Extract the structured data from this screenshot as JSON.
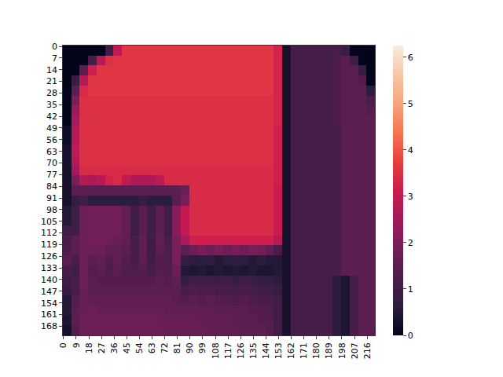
{
  "chart_data": {
    "type": "heatmap",
    "x": [
      2.5,
      8.5,
      14.5,
      20.5,
      26.5,
      32.5,
      38.5,
      44.5,
      50.5,
      56.5,
      62.5,
      68.5,
      74.5,
      80.5,
      86.5,
      92.5,
      98.5,
      104.5,
      110.5,
      116.5,
      122.5,
      128.5,
      134.5,
      140.5,
      146.5,
      152.5,
      158.5,
      164.5,
      170.5,
      176.5,
      182.5,
      188.5,
      194.5,
      200.5,
      206.5,
      212.5,
      218.5
    ],
    "y": [
      2.5,
      8.5,
      14.5,
      20.5,
      26.5,
      32.5,
      38.5,
      44.5,
      50.5,
      56.5,
      62.5,
      68.5,
      74.5,
      80.5,
      86.5,
      92.5,
      98.5,
      104.5,
      110.5,
      116.5,
      122.5,
      128.5,
      134.5,
      140.5,
      146.5,
      152.5,
      158.5,
      164.5,
      170.5
    ],
    "cells": [
      [
        0,
        0,
        0,
        0,
        0,
        1.0,
        3.0,
        3.6,
        3.6,
        3.6,
        3.6,
        3.6,
        3.6,
        3.6,
        3.6,
        3.6,
        3.6,
        3.6,
        3.6,
        3.6,
        3.6,
        3.6,
        3.6,
        3.6,
        3.6,
        3.3,
        0.3,
        1.1,
        1.1,
        1.1,
        1.1,
        1.1,
        1.2,
        0.9,
        0,
        0,
        0
      ],
      [
        0,
        0,
        0,
        1.2,
        2.8,
        3.5,
        3.6,
        3.6,
        3.6,
        3.6,
        3.6,
        3.6,
        3.6,
        3.6,
        3.6,
        3.6,
        3.6,
        3.6,
        3.6,
        3.6,
        3.6,
        3.6,
        3.6,
        3.6,
        3.6,
        3.3,
        0.3,
        1.1,
        1.1,
        1.1,
        1.1,
        1.1,
        1.3,
        1.5,
        1.0,
        0,
        0
      ],
      [
        0,
        0,
        1.5,
        3.2,
        3.6,
        3.6,
        3.6,
        3.6,
        3.6,
        3.6,
        3.6,
        3.6,
        3.6,
        3.6,
        3.6,
        3.6,
        3.6,
        3.6,
        3.6,
        3.6,
        3.6,
        3.6,
        3.6,
        3.6,
        3.6,
        3.3,
        0.3,
        1.1,
        1.1,
        1.1,
        1.1,
        1.1,
        1.3,
        1.5,
        1.5,
        0.8,
        0
      ],
      [
        0,
        0.8,
        2.8,
        3.6,
        3.6,
        3.6,
        3.6,
        3.6,
        3.6,
        3.6,
        3.6,
        3.6,
        3.6,
        3.6,
        3.6,
        3.6,
        3.6,
        3.6,
        3.6,
        3.6,
        3.6,
        3.6,
        3.6,
        3.6,
        3.6,
        3.3,
        0.3,
        1.1,
        1.1,
        1.1,
        1.1,
        1.1,
        1.3,
        1.5,
        1.5,
        1.4,
        0
      ],
      [
        0,
        1.5,
        3.4,
        3.6,
        3.6,
        3.6,
        3.6,
        3.6,
        3.6,
        3.6,
        3.6,
        3.6,
        3.6,
        3.6,
        3.6,
        3.6,
        3.6,
        3.6,
        3.6,
        3.6,
        3.6,
        3.6,
        3.6,
        3.6,
        3.6,
        3.3,
        0.3,
        1.1,
        1.1,
        1.1,
        1.1,
        1.1,
        1.3,
        1.5,
        1.5,
        1.5,
        0.6
      ],
      [
        0,
        2.0,
        3.5,
        3.5,
        3.5,
        3.5,
        3.5,
        3.5,
        3.5,
        3.5,
        3.5,
        3.5,
        3.5,
        3.5,
        3.5,
        3.5,
        3.5,
        3.5,
        3.5,
        3.5,
        3.5,
        3.5,
        3.5,
        3.5,
        3.5,
        3.3,
        0.3,
        1.1,
        1.1,
        1.1,
        1.1,
        1.1,
        1.3,
        1.5,
        1.5,
        1.5,
        1.2
      ],
      [
        0,
        2.4,
        3.5,
        3.5,
        3.5,
        3.5,
        3.5,
        3.5,
        3.5,
        3.5,
        3.5,
        3.5,
        3.5,
        3.5,
        3.5,
        3.5,
        3.5,
        3.5,
        3.5,
        3.5,
        3.5,
        3.5,
        3.5,
        3.5,
        3.5,
        3.3,
        0.3,
        1.1,
        1.1,
        1.1,
        1.1,
        1.1,
        1.3,
        1.5,
        1.5,
        1.5,
        1.4
      ],
      [
        0,
        2.6,
        3.5,
        3.5,
        3.5,
        3.5,
        3.5,
        3.5,
        3.5,
        3.5,
        3.5,
        3.5,
        3.5,
        3.5,
        3.5,
        3.5,
        3.5,
        3.5,
        3.5,
        3.5,
        3.5,
        3.5,
        3.5,
        3.5,
        3.5,
        3.3,
        0.3,
        1.1,
        1.1,
        1.1,
        1.1,
        1.1,
        1.3,
        1.5,
        1.5,
        1.5,
        1.5
      ],
      [
        0.2,
        2.8,
        3.5,
        3.5,
        3.5,
        3.5,
        3.5,
        3.5,
        3.5,
        3.5,
        3.5,
        3.5,
        3.5,
        3.5,
        3.5,
        3.5,
        3.5,
        3.5,
        3.5,
        3.5,
        3.5,
        3.5,
        3.5,
        3.5,
        3.5,
        3.2,
        0.3,
        1.1,
        1.1,
        1.1,
        1.1,
        1.1,
        1.2,
        1.5,
        1.5,
        1.5,
        1.5
      ],
      [
        0.2,
        2.8,
        3.5,
        3.5,
        3.5,
        3.5,
        3.5,
        3.5,
        3.5,
        3.5,
        3.5,
        3.5,
        3.5,
        3.5,
        3.5,
        3.5,
        3.5,
        3.5,
        3.5,
        3.5,
        3.5,
        3.5,
        3.5,
        3.5,
        3.5,
        3.2,
        0.3,
        1.1,
        1.1,
        1.1,
        1.1,
        1.1,
        1.2,
        1.5,
        1.5,
        1.5,
        1.5
      ],
      [
        0.3,
        3.0,
        3.5,
        3.5,
        3.5,
        3.5,
        3.5,
        3.5,
        3.5,
        3.5,
        3.5,
        3.5,
        3.5,
        3.5,
        3.5,
        3.5,
        3.5,
        3.5,
        3.5,
        3.5,
        3.5,
        3.5,
        3.5,
        3.5,
        3.5,
        3.2,
        0.3,
        1.1,
        1.1,
        1.1,
        1.1,
        1.1,
        1.2,
        1.5,
        1.5,
        1.5,
        1.5
      ],
      [
        0.3,
        2.8,
        3.5,
        3.5,
        3.5,
        3.5,
        3.5,
        3.5,
        3.5,
        3.5,
        3.5,
        3.5,
        3.5,
        3.5,
        3.5,
        3.5,
        3.5,
        3.5,
        3.5,
        3.5,
        3.5,
        3.5,
        3.5,
        3.5,
        3.5,
        3.2,
        0.3,
        1.1,
        1.1,
        1.1,
        1.1,
        1.1,
        1.2,
        1.5,
        1.5,
        1.5,
        1.5
      ],
      [
        0.3,
        2.5,
        3.4,
        3.4,
        3.4,
        3.4,
        3.4,
        3.4,
        3.4,
        3.4,
        3.4,
        3.4,
        3.4,
        3.4,
        3.4,
        3.4,
        3.4,
        3.4,
        3.4,
        3.4,
        3.4,
        3.4,
        3.4,
        3.4,
        3.4,
        3.2,
        0.3,
        1.1,
        1.1,
        1.1,
        1.1,
        1.1,
        1.2,
        1.5,
        1.5,
        1.5,
        1.5
      ],
      [
        0.3,
        2.0,
        2.8,
        2.7,
        2.8,
        3.3,
        3.4,
        3.0,
        2.7,
        2.7,
        2.7,
        2.9,
        3.4,
        3.4,
        3.4,
        3.4,
        3.4,
        3.4,
        3.4,
        3.4,
        3.4,
        3.4,
        3.4,
        3.4,
        3.4,
        3.2,
        0.3,
        1.1,
        1.1,
        1.1,
        1.1,
        1.1,
        1.2,
        1.5,
        1.5,
        1.5,
        1.5
      ],
      [
        0.3,
        1.5,
        1.5,
        1.5,
        1.5,
        1.5,
        1.5,
        1.5,
        1.5,
        1.5,
        1.5,
        1.5,
        1.5,
        1.5,
        1.8,
        3.4,
        3.4,
        3.4,
        3.4,
        3.4,
        3.4,
        3.4,
        3.4,
        3.4,
        3.4,
        3.1,
        0.3,
        1.1,
        1.1,
        1.1,
        1.1,
        1.1,
        1.2,
        1.5,
        1.5,
        1.5,
        1.5
      ],
      [
        0.3,
        0.8,
        1.0,
        0.6,
        0.6,
        0.6,
        0.6,
        0.6,
        0.6,
        0.8,
        0.6,
        0.6,
        0.6,
        1.5,
        2.0,
        3.4,
        3.4,
        3.4,
        3.4,
        3.4,
        3.4,
        3.4,
        3.4,
        3.4,
        3.4,
        3.1,
        0.3,
        1.1,
        1.1,
        1.1,
        1.1,
        1.1,
        1.2,
        1.5,
        1.5,
        1.5,
        1.5
      ],
      [
        0.5,
        1.0,
        1.8,
        1.9,
        1.9,
        1.9,
        1.9,
        1.6,
        1.0,
        1.5,
        1.0,
        1.5,
        1.0,
        2.2,
        3.0,
        3.4,
        3.4,
        3.4,
        3.4,
        3.4,
        3.4,
        3.4,
        3.4,
        3.4,
        3.4,
        3.1,
        0.3,
        1.1,
        1.1,
        1.1,
        1.1,
        1.1,
        1.2,
        1.5,
        1.5,
        1.5,
        1.5
      ],
      [
        0.5,
        1.0,
        1.8,
        1.9,
        1.9,
        1.9,
        1.9,
        1.6,
        1.0,
        1.5,
        1.0,
        1.5,
        1.0,
        2.2,
        3.0,
        3.4,
        3.4,
        3.4,
        3.4,
        3.4,
        3.4,
        3.4,
        3.4,
        3.4,
        3.4,
        3.1,
        0.3,
        1.1,
        1.1,
        1.1,
        1.1,
        1.1,
        1.2,
        1.5,
        1.5,
        1.5,
        1.5
      ],
      [
        1.0,
        1.0,
        1.8,
        1.9,
        1.9,
        1.9,
        1.9,
        1.6,
        1.0,
        1.5,
        1.0,
        1.5,
        1.0,
        2.2,
        3.0,
        3.4,
        3.4,
        3.4,
        3.4,
        3.4,
        3.4,
        3.4,
        3.4,
        3.4,
        3.4,
        3.1,
        0.3,
        1.1,
        1.1,
        1.1,
        1.1,
        1.1,
        1.2,
        1.5,
        1.5,
        1.5,
        1.5
      ],
      [
        1.2,
        1.5,
        1.8,
        1.9,
        1.9,
        1.8,
        1.7,
        1.6,
        1.2,
        1.6,
        1.0,
        1.6,
        1.2,
        2.0,
        2.6,
        3.2,
        3.2,
        3.2,
        3.2,
        3.2,
        3.2,
        3.2,
        3.2,
        3.2,
        3.2,
        2.8,
        0.3,
        1.1,
        1.1,
        1.1,
        1.1,
        1.1,
        1.2,
        1.5,
        1.5,
        1.5,
        1.5
      ],
      [
        1.3,
        1.5,
        1.8,
        1.8,
        1.8,
        1.6,
        1.6,
        1.5,
        1.2,
        1.6,
        1.0,
        1.5,
        1.3,
        2.0,
        1.5,
        1.8,
        2.0,
        1.8,
        2.0,
        1.8,
        2.0,
        1.8,
        2.0,
        1.9,
        1.6,
        1.2,
        0.3,
        1.1,
        1.1,
        1.1,
        1.1,
        1.1,
        1.2,
        1.5,
        1.5,
        1.5,
        1.5
      ],
      [
        1.5,
        1.2,
        1.8,
        1.5,
        1.6,
        1.4,
        1.6,
        1.4,
        1.2,
        1.5,
        1.0,
        1.4,
        1.3,
        2.0,
        0.8,
        0.6,
        0.6,
        0.7,
        0.5,
        0.6,
        0.7,
        0.6,
        0.5,
        0.6,
        0.5,
        0.5,
        0.3,
        1.1,
        1.1,
        1.1,
        1.1,
        1.1,
        1.2,
        1.5,
        1.5,
        1.5,
        1.5
      ],
      [
        1.2,
        1.0,
        1.8,
        1.4,
        1.5,
        1.3,
        1.5,
        1.3,
        1.3,
        1.4,
        1.2,
        1.4,
        1.4,
        1.8,
        0.5,
        0.4,
        0.5,
        0.4,
        0.5,
        0.4,
        0.5,
        0.4,
        0.5,
        0.4,
        0.4,
        0.5,
        0.3,
        1.1,
        1.1,
        1.1,
        1.1,
        1.1,
        1.2,
        1.5,
        1.5,
        1.5,
        1.5
      ],
      [
        1.0,
        1.2,
        1.8,
        1.5,
        1.4,
        1.4,
        1.4,
        1.4,
        1.4,
        1.4,
        1.4,
        1.5,
        1.4,
        1.6,
        0.8,
        1.0,
        0.9,
        1.0,
        0.9,
        1.0,
        0.8,
        1.0,
        0.9,
        0.8,
        0.7,
        0.6,
        0.3,
        1.1,
        1.1,
        1.1,
        1.1,
        1.1,
        0.6,
        0.4,
        1.2,
        1.5,
        1.5
      ],
      [
        0.8,
        1.2,
        1.7,
        1.5,
        1.5,
        1.5,
        1.5,
        1.5,
        1.5,
        1.5,
        1.5,
        1.5,
        1.5,
        1.5,
        1.2,
        1.3,
        1.2,
        1.3,
        1.2,
        1.2,
        1.1,
        1.2,
        1.1,
        1.0,
        1.0,
        0.8,
        0.3,
        1.1,
        1.1,
        1.1,
        1.1,
        1.1,
        0.6,
        0.4,
        1.2,
        1.5,
        1.5
      ],
      [
        0.5,
        1.4,
        1.7,
        1.6,
        1.6,
        1.6,
        1.6,
        1.6,
        1.6,
        1.6,
        1.6,
        1.6,
        1.6,
        1.5,
        1.4,
        1.5,
        1.4,
        1.5,
        1.4,
        1.4,
        1.3,
        1.4,
        1.3,
        1.2,
        1.2,
        1.0,
        0.3,
        1.1,
        1.1,
        1.1,
        1.1,
        1.1,
        0.6,
        0.4,
        1.2,
        1.5,
        1.5
      ],
      [
        0.5,
        1.5,
        1.7,
        1.8,
        1.7,
        1.7,
        1.7,
        1.7,
        1.7,
        1.7,
        1.7,
        1.7,
        1.6,
        1.6,
        1.6,
        1.6,
        1.6,
        1.6,
        1.5,
        1.5,
        1.5,
        1.5,
        1.4,
        1.4,
        1.3,
        1.0,
        0.3,
        1.1,
        1.1,
        1.1,
        1.1,
        1.1,
        0.6,
        0.4,
        1.2,
        1.5,
        1.5
      ],
      [
        0.4,
        1.5,
        1.8,
        1.8,
        1.8,
        1.8,
        1.8,
        1.8,
        1.8,
        1.8,
        1.8,
        1.7,
        1.7,
        1.7,
        1.7,
        1.7,
        1.6,
        1.6,
        1.6,
        1.6,
        1.5,
        1.5,
        1.5,
        1.4,
        1.4,
        1.0,
        0.3,
        1.1,
        1.1,
        1.1,
        1.1,
        1.1,
        0.6,
        0.4,
        1.2,
        1.5,
        1.5
      ],
      [
        0.3,
        1.4,
        1.8,
        1.8,
        1.8,
        1.8,
        1.8,
        1.8,
        1.8,
        1.8,
        1.8,
        1.8,
        1.7,
        1.7,
        1.7,
        1.7,
        1.7,
        1.6,
        1.6,
        1.6,
        1.6,
        1.5,
        1.5,
        1.5,
        1.4,
        1.0,
        0.3,
        1.1,
        1.1,
        1.1,
        1.1,
        1.1,
        0.6,
        0.4,
        1.2,
        1.5,
        1.5
      ]
    ],
    "xlim": [
      -0.5,
      221.5
    ],
    "ylim": [
      173.5,
      -0.5
    ],
    "xticks": [
      0,
      9,
      18,
      27,
      36,
      45,
      54,
      63,
      72,
      81,
      90,
      99,
      108,
      117,
      126,
      135,
      144,
      153,
      162,
      171,
      180,
      189,
      198,
      207,
      216
    ],
    "yticks": [
      0,
      7,
      14,
      21,
      28,
      35,
      42,
      49,
      56,
      63,
      70,
      77,
      84,
      91,
      98,
      105,
      112,
      119,
      126,
      133,
      140,
      147,
      154,
      161,
      168
    ],
    "colorbar_range": [
      0,
      6.25
    ],
    "colorbar_ticks": [
      0,
      1,
      2,
      3,
      4,
      5,
      6
    ]
  }
}
